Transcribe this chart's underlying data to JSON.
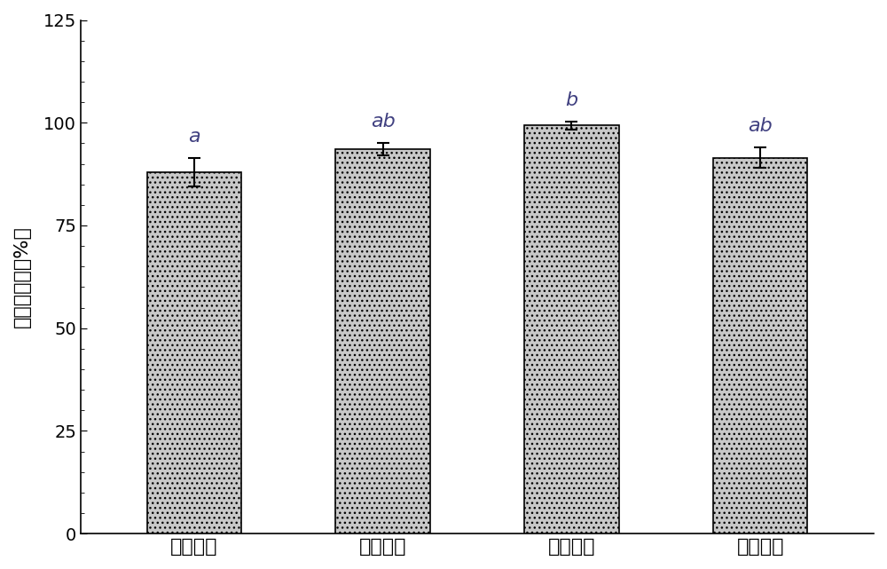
{
  "categories": [
    "纯水浸种",
    "实施例一",
    "实施例二",
    "实施例三"
  ],
  "values": [
    88.0,
    93.5,
    99.3,
    91.5
  ],
  "errors": [
    3.5,
    1.5,
    1.0,
    2.5
  ],
  "sig_labels": [
    "a",
    "ab",
    "b",
    "ab"
  ],
  "bar_color": "#c8c8c8",
  "bar_edgecolor": "#000000",
  "ylabel": "种子发芽率（%）",
  "ylim": [
    0,
    125
  ],
  "yticks": [
    0,
    25,
    50,
    75,
    100,
    125
  ],
  "background_color": "#ffffff",
  "bar_width": 0.5,
  "sig_label_color": "#404080",
  "ylabel_fontsize": 16,
  "tick_fontsize": 14,
  "sig_fontsize": 16
}
